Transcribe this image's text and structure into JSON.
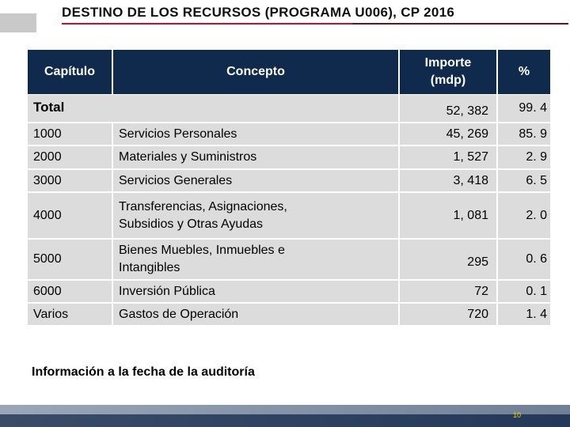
{
  "title": "DESTINO DE LOS RECURSOS (PROGRAMA U006), CP 2016",
  "table": {
    "headers": {
      "capitulo": "Capítulo",
      "concepto": "Concepto",
      "importe_line1": "Importe",
      "importe_line2": "(mdp)",
      "pct": "%"
    },
    "total": {
      "label": "Total",
      "importe": "52, 382",
      "pct": "99. 4"
    },
    "rows": [
      {
        "capitulo": "1000",
        "concepto": "Servicios Personales",
        "importe": "45, 269",
        "pct": "85. 9"
      },
      {
        "capitulo": "2000",
        "concepto": "Materiales y Suministros",
        "importe": "1, 527",
        "pct": "2. 9"
      },
      {
        "capitulo": "3000",
        "concepto": "Servicios Generales",
        "importe": "3, 418",
        "pct": "6. 5"
      },
      {
        "capitulo": "4000",
        "concepto_line1": "Transferencias, Asignaciones,",
        "concepto_line2": "Subsidios y Otras Ayudas",
        "importe": "1, 081",
        "pct": "2. 0"
      },
      {
        "capitulo": "5000",
        "concepto_line1": "Bienes Muebles, Inmuebles e",
        "concepto_line2": "Intangibles",
        "importe": "295",
        "pct": "0. 6"
      },
      {
        "capitulo": "6000",
        "concepto": "Inversión Pública",
        "importe": "72",
        "pct": "0. 1"
      },
      {
        "capitulo": "Varios",
        "concepto": "Gastos de Operación",
        "importe": "720",
        "pct": "1. 4"
      }
    ]
  },
  "footer_note": "Información a la fecha de la auditoría",
  "page_number": "10",
  "colors": {
    "header_bg": "#0f2a4c",
    "row_bg": "#dcdcdc",
    "accent_rule": "#c8102e"
  }
}
